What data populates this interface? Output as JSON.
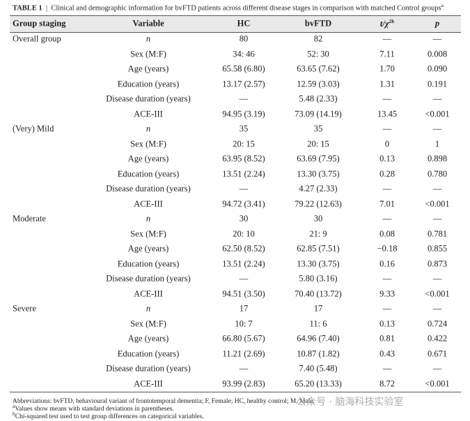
{
  "title": {
    "label": "TABLE 1",
    "text": "Clinical and demographic information for bvFTD patients across different disease stages in comparison with matched Control groups",
    "sup": "a"
  },
  "table": {
    "headers": [
      {
        "text": "Group staging"
      },
      {
        "text": "Variable"
      },
      {
        "text": "HC"
      },
      {
        "text": "bvFTD"
      },
      {
        "text": "t/χ",
        "sup": "2b"
      },
      {
        "text": "p"
      }
    ],
    "rows": [
      [
        "Overall group",
        "n",
        "80",
        "82",
        "—",
        "—"
      ],
      [
        null,
        "Sex (M:F)",
        "34: 46",
        "52: 30",
        "7.11",
        "0.008"
      ],
      [
        null,
        "Age (years)",
        "65.58 (6.80)",
        "63.65 (7.62)",
        "1.70",
        "0.090"
      ],
      [
        null,
        "Education (years)",
        "13.17 (2.57)",
        "12.59 (3.03)",
        "1.31",
        "0.191"
      ],
      [
        null,
        "Disease duration (years)",
        "—",
        "5.48 (2.33)",
        "—",
        "—"
      ],
      [
        null,
        "ACE-III",
        "94.95 (3.19)",
        "73.09 (14.19)",
        "13.45",
        "<0.001"
      ],
      [
        "(Very) Mild",
        "n",
        "35",
        "35",
        "—",
        "—"
      ],
      [
        null,
        "Sex (M:F)",
        "20: 15",
        "20: 15",
        "0",
        "1"
      ],
      [
        null,
        "Age (years)",
        "63.95 (8.52)",
        "63.69 (7.95)",
        "0.13",
        "0.898"
      ],
      [
        null,
        "Education (years)",
        "13.51 (2.24)",
        "13.30 (3.75)",
        "0.28",
        "0.780"
      ],
      [
        null,
        "Disease duration (years)",
        "—",
        "4.27 (2.33)",
        "—",
        "—"
      ],
      [
        null,
        "ACE-III",
        "94.72 (3.41)",
        "79.22 (12.63)",
        "7.01",
        "<0.001"
      ],
      [
        "Moderate",
        "n",
        "30",
        "30",
        "—",
        "—"
      ],
      [
        null,
        "Sex (M:F)",
        "20: 10",
        "21: 9",
        "0.08",
        "0.781"
      ],
      [
        null,
        "Age (years)",
        "62.50 (8.52)",
        "62.85 (7.51)",
        "−0.18",
        "0.855"
      ],
      [
        null,
        "Education (years)",
        "13.51 (2.24)",
        "13.30 (3.75)",
        "0.16",
        "0.873"
      ],
      [
        null,
        "Disease duration (years)",
        "—",
        "5.80 (3.16)",
        "—",
        "—"
      ],
      [
        null,
        "ACE-III",
        "94.51 (3.50)",
        "70.40 (13.72)",
        "9.33",
        "<0.001"
      ],
      [
        "Severe",
        "n",
        "17",
        "17",
        "—",
        "—"
      ],
      [
        null,
        "Sex (M:F)",
        "10: 7",
        "11: 6",
        "0.13",
        "0.724"
      ],
      [
        null,
        "Age (years)",
        "66.80 (5.67)",
        "64.96 (7.40)",
        "0.81",
        "0.422"
      ],
      [
        null,
        "Education (years)",
        "11.21 (2.69)",
        "10.87 (1.82)",
        "0.43",
        "0.671"
      ],
      [
        null,
        "Disease duration (years)",
        "—",
        "7.40 (5.48)",
        "—",
        "—"
      ],
      [
        null,
        "ACE-III",
        "93.99 (2.83)",
        "65.20 (13.33)",
        "8.72",
        "<0.001"
      ]
    ]
  },
  "footnotes": [
    {
      "text": "Abbreviations: bvFTD, behavioural variant of frontotemporal dementia; F, Female; HC, healthy control; M, Male."
    },
    {
      "sup": "a",
      "text": "Values show means with standard deviations in parentheses."
    },
    {
      "sup": "b",
      "text": "Chi-squared test used to test group differences on categorical variables."
    }
  ],
  "watermark": "公众号 · 脑海科技实验室"
}
